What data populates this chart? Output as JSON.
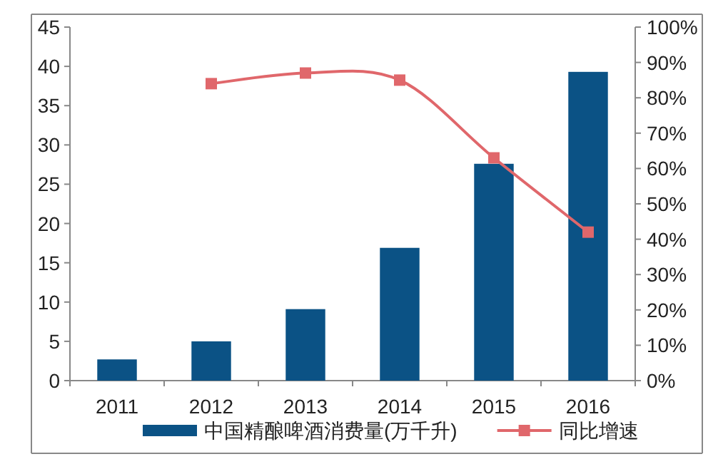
{
  "chart_data": {
    "type": "bar",
    "categories": [
      "2011",
      "2012",
      "2013",
      "2014",
      "2015",
      "2016"
    ],
    "series": [
      {
        "name": "中国精酿啤酒消费量(万千升)",
        "color": "#0b5285",
        "values": [
          2.7,
          5.0,
          9.1,
          16.9,
          27.6,
          39.3
        ]
      },
      {
        "name": "同比增速",
        "type": "line",
        "axis": "y2",
        "color": "#e0676b",
        "marker": "square",
        "values": [
          null,
          84,
          87,
          85,
          63,
          42
        ]
      }
    ],
    "ylim": [
      0,
      45
    ],
    "yticks": [
      0,
      5,
      10,
      15,
      20,
      25,
      30,
      35,
      40,
      45
    ],
    "y2lim": [
      0,
      100
    ],
    "y2ticks": [
      {
        "value": 0,
        "label": "0%"
      },
      {
        "value": 10,
        "label": "10%"
      },
      {
        "value": 20,
        "label": "20%"
      },
      {
        "value": 30,
        "label": "30%"
      },
      {
        "value": 40,
        "label": "40%"
      },
      {
        "value": 50,
        "label": "50%"
      },
      {
        "value": 60,
        "label": "60%"
      },
      {
        "value": 70,
        "label": "70%"
      },
      {
        "value": 80,
        "label": "80%"
      },
      {
        "value": 90,
        "label": "90%"
      },
      {
        "value": 100,
        "label": "100%"
      }
    ],
    "legend": "bottom"
  }
}
